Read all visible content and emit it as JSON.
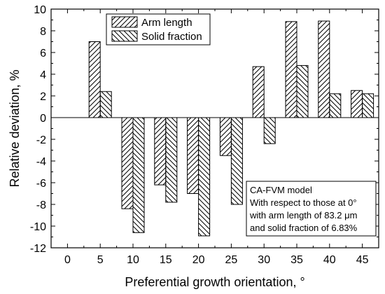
{
  "chart_data": {
    "type": "bar",
    "title": "",
    "xlabel": "Preferential growth orientation, °",
    "ylabel": "Relative deviation, %",
    "xlim": [
      -2.5,
      47.5
    ],
    "ylim": [
      -12,
      10
    ],
    "x_ticks": [
      0,
      5,
      10,
      15,
      20,
      25,
      30,
      35,
      40,
      45
    ],
    "y_ticks": [
      -12,
      -10,
      -8,
      -6,
      -4,
      -2,
      0,
      2,
      4,
      6,
      8,
      10
    ],
    "x": [
      5,
      10,
      15,
      20,
      25,
      30,
      35,
      40,
      45
    ],
    "series": [
      {
        "name": "Arm length",
        "pattern": "forward-hatch",
        "values": [
          7.0,
          -8.4,
          -6.2,
          -7.0,
          -3.5,
          4.7,
          8.85,
          8.9,
          2.5
        ]
      },
      {
        "name": "Solid fraction",
        "pattern": "back-hatch",
        "values": [
          2.4,
          -10.6,
          -7.8,
          -10.9,
          -8.0,
          -2.4,
          4.8,
          2.2,
          2.2
        ]
      }
    ],
    "legend_position": "top-left",
    "annotation": {
      "lines": [
        "CA-FVM model",
        "With respect to those at 0°",
        "with arm length of 83.2 μm",
        "and solid fraction of 6.83%"
      ]
    },
    "colors": {
      "bar_fill": "#ffffff",
      "hatch": "#000000",
      "axis": "#000000"
    }
  }
}
